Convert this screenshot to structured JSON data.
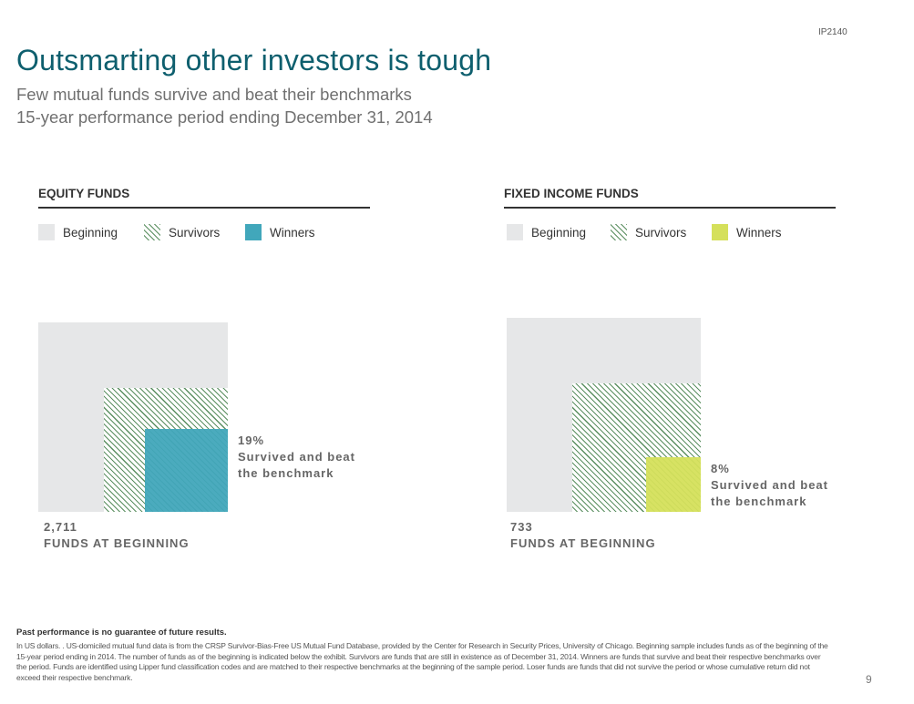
{
  "header": {
    "code": "IP2140",
    "title": "Outsmarting other investors is tough",
    "subtitle_1": "Few mutual funds survive and beat their benchmarks",
    "subtitle_2": "15-year performance period ending December 31, 2014"
  },
  "colors": {
    "beginning": "#e6e7e8",
    "survivors_hatch": "#5b8f61",
    "equity_winners": "#41a7bb",
    "fixed_winners": "#d5e05b"
  },
  "chart_data": [
    {
      "type": "nested-area",
      "title": "EQUITY FUNDS",
      "legend": [
        "Beginning",
        "Survivors",
        "Winners"
      ],
      "funds_at_beginning": "2,711",
      "funds_label": "FUNDS AT BEGINNING",
      "beginning_share": 1.0,
      "survivors_share": 0.43,
      "winners_pct": 19,
      "winners_pct_label": "19%",
      "winners_text_1": "Survived and beat",
      "winners_text_2": "the benchmark"
    },
    {
      "type": "nested-area",
      "title": "FIXED INCOME FUNDS",
      "legend": [
        "Beginning",
        "Survivors",
        "Winners"
      ],
      "funds_at_beginning": "733",
      "funds_label": "FUNDS AT BEGINNING",
      "beginning_share": 1.0,
      "survivors_share": 0.44,
      "winners_pct": 8,
      "winners_pct_label": "8%",
      "winners_text_1": "Survived and beat",
      "winners_text_2": "the benchmark"
    }
  ],
  "footer": {
    "disclaimer": "Past performance is no guarantee of future results.",
    "notes": "In US dollars. . US-domiciled mutual fund data is from the CRSP Survivor-Bias-Free US Mutual Fund Database, provided by the Center for Research in Security Prices, University of Chicago. Beginning sample includes funds as of the beginning of the 15-year period ending in 2014. The number of funds as of the beginning is indicated below the exhibit. Survivors are funds that are still in existence as of December 31, 2014. Winners are funds that survive and beat their respective benchmarks over the period. Funds are identified using Lipper fund classification codes and are matched to their respective benchmarks at the beginning of the sample period. Loser funds are funds that did not survive the period or whose cumulative return did not exceed their respective benchmark.",
    "page_number": "9"
  }
}
